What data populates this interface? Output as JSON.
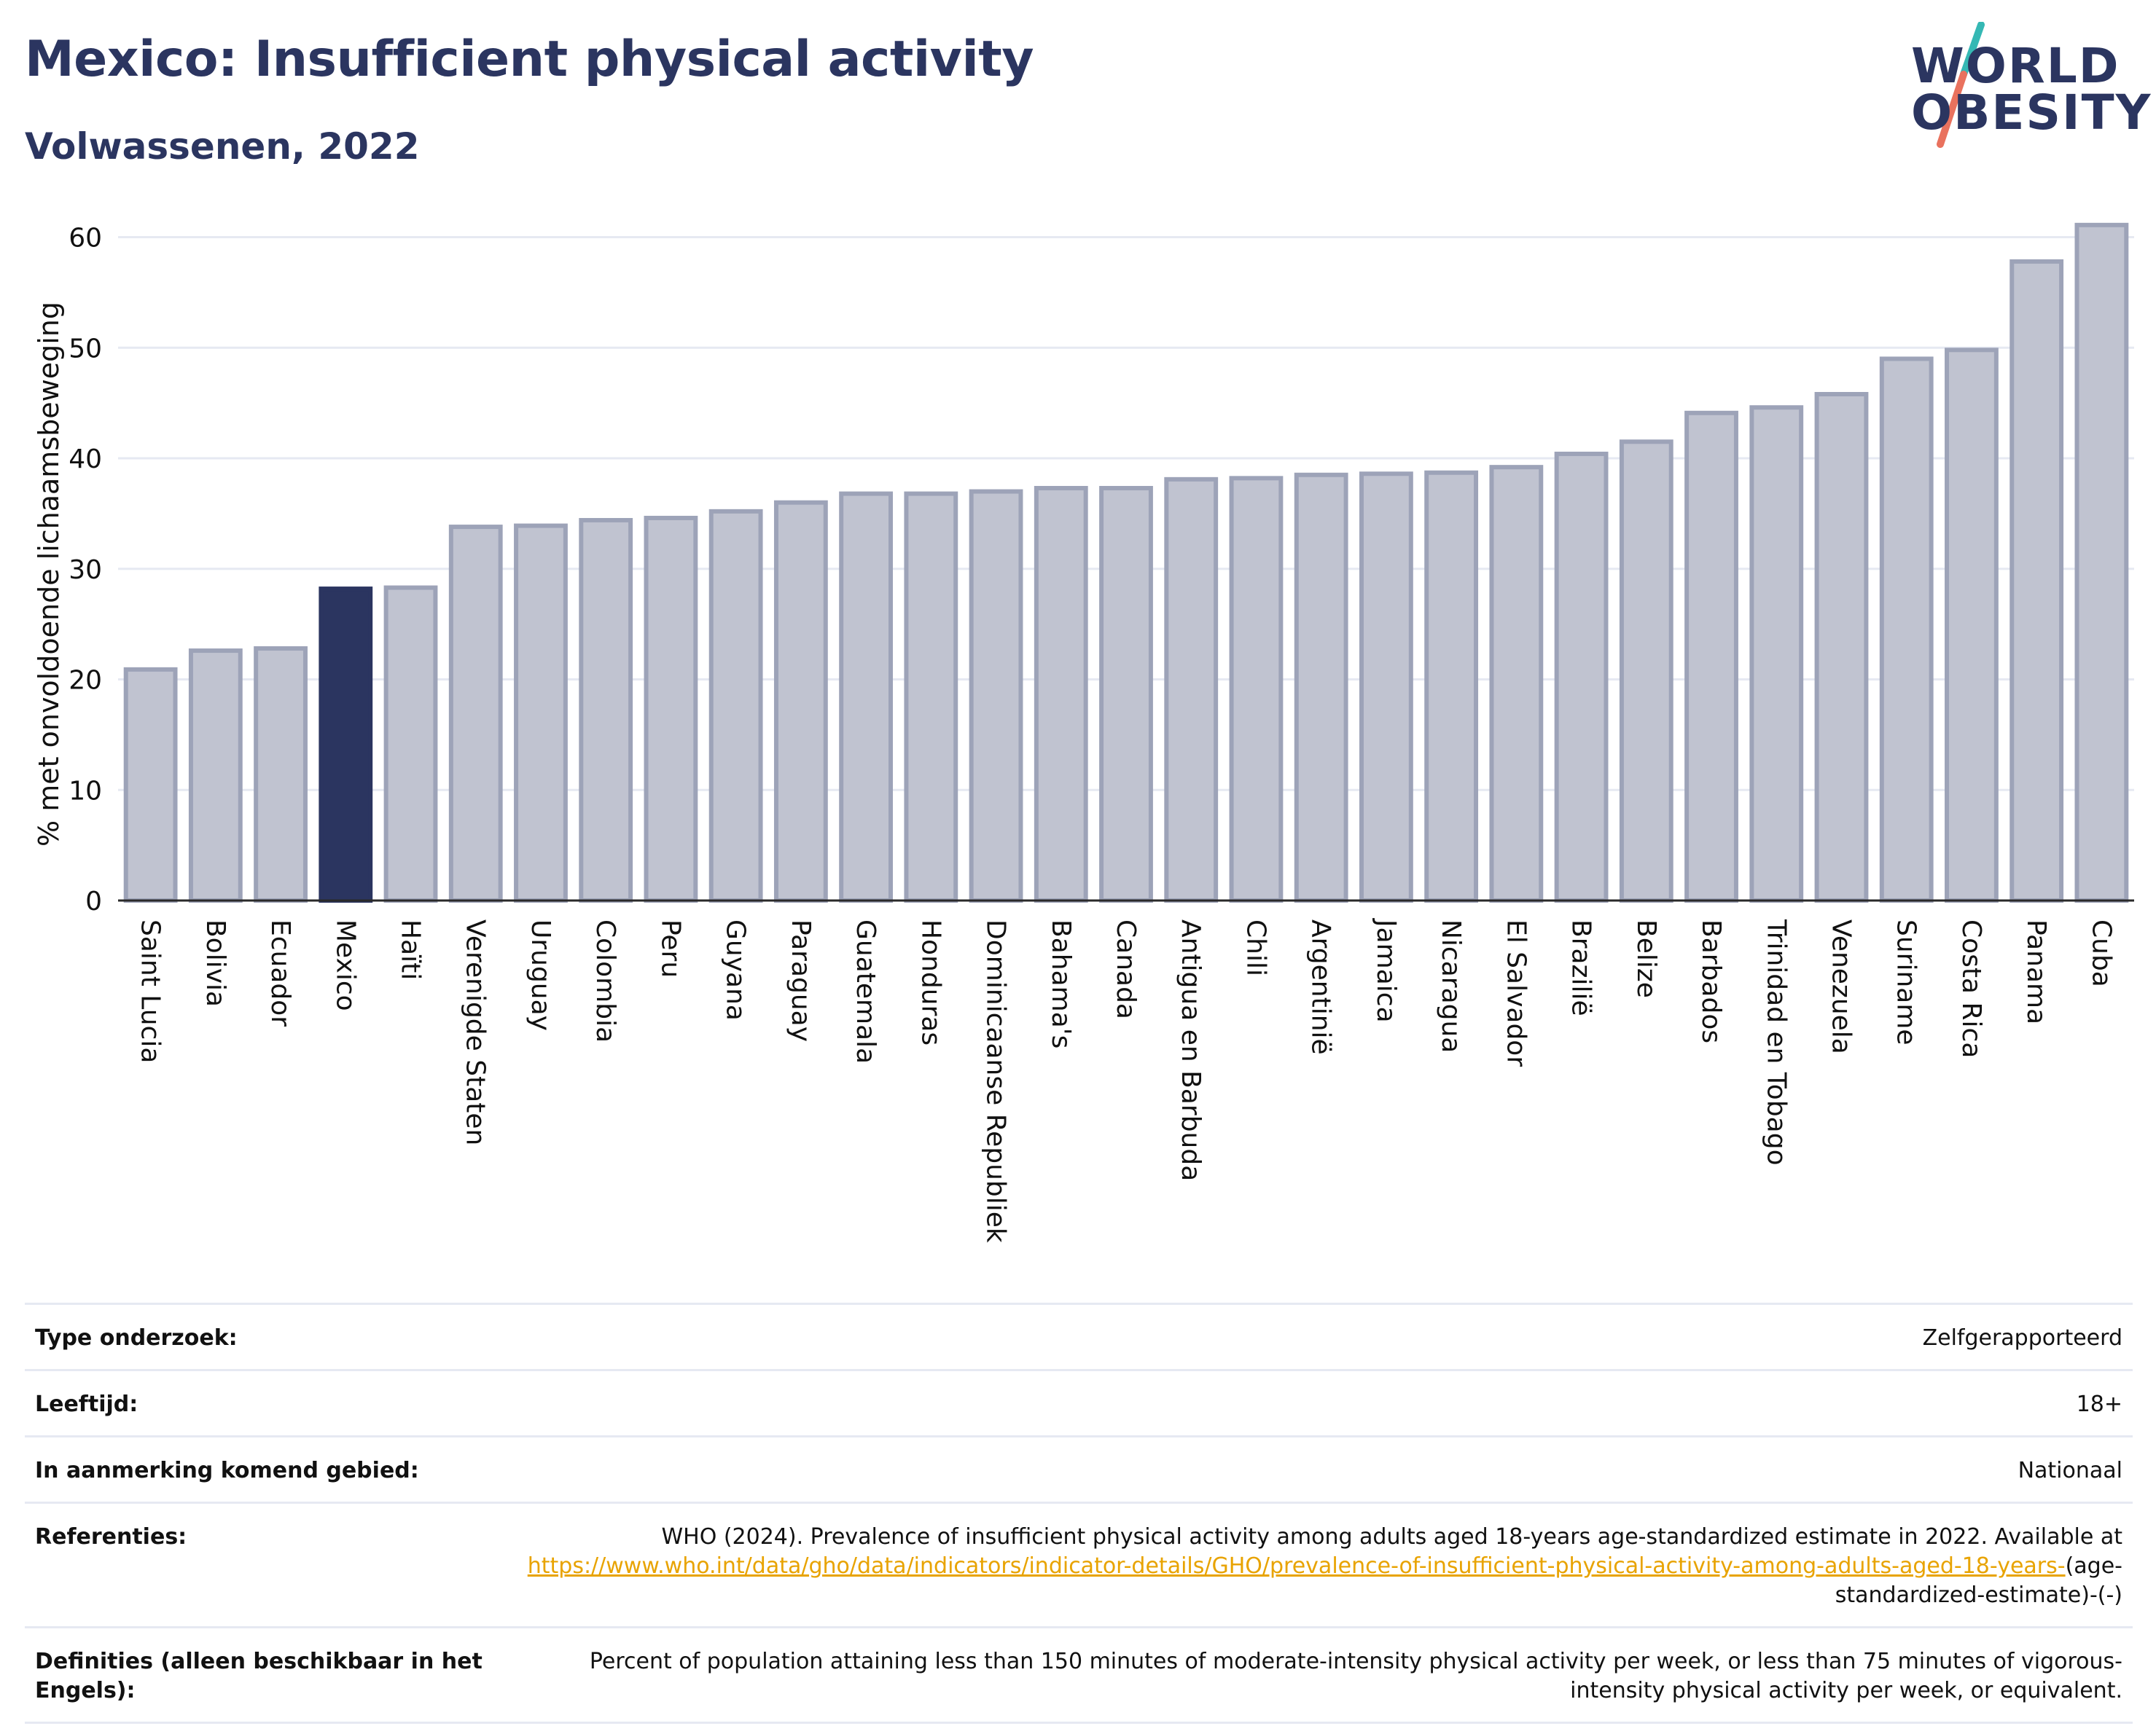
{
  "header": {
    "title": "Mexico: Insufficient physical activity",
    "subtitle": "Volwassenen, 2022"
  },
  "logo": {
    "line1": "WORLD",
    "line2": "OBESITY"
  },
  "colors": {
    "highlight": "#2b3560",
    "bar_fill": "#c0c3d0",
    "bar_stroke": "#9da3b8",
    "grid": "#e6e9f2",
    "logo_teal": "#35b8b4",
    "logo_coral": "#e9725e",
    "link": "#e8a300"
  },
  "chart_data": {
    "type": "bar",
    "title": "Mexico: Insufficient physical activity",
    "subtitle": "Volwassenen, 2022",
    "xlabel": "",
    "ylabel": "% met onvoldoende lichaamsbeweging",
    "ylim": [
      0,
      63
    ],
    "yticks": [
      0,
      10,
      20,
      30,
      40,
      50,
      60
    ],
    "grid": true,
    "highlight": "Mexico",
    "categories": [
      "Saint Lucia",
      "Bolivia",
      "Ecuador",
      "Mexico",
      "Haïti",
      "Verenigde Staten",
      "Uruguay",
      "Colombia",
      "Peru",
      "Guyana",
      "Paraguay",
      "Guatemala",
      "Honduras",
      "Dominicaanse Republiek",
      "Bahama's",
      "Canada",
      "Antigua en Barbuda",
      "Chili",
      "Argentinië",
      "Jamaica",
      "Nicaragua",
      "El Salvador",
      "Brazilië",
      "Belize",
      "Barbados",
      "Trinidad en Tobago",
      "Venezuela",
      "Suriname",
      "Costa Rica",
      "Panama",
      "Cuba"
    ],
    "values": [
      20.9,
      22.6,
      22.8,
      28.2,
      28.3,
      33.8,
      33.9,
      34.4,
      34.6,
      35.2,
      36.0,
      36.8,
      36.8,
      37.0,
      37.3,
      37.3,
      38.1,
      38.2,
      38.5,
      38.6,
      38.7,
      39.2,
      40.4,
      41.5,
      44.1,
      44.6,
      45.8,
      49.0,
      49.8,
      57.8,
      61.1
    ]
  },
  "info_table": [
    {
      "key": "Type onderzoek:",
      "value": "Zelfgerapporteerd"
    },
    {
      "key": "Leeftijd:",
      "value": "18+"
    },
    {
      "key": "In aanmerking komend gebied:",
      "value": "Nationaal"
    },
    {
      "key": "Referenties:",
      "value": "WHO (2024). Prevalence of insufficient physical activity among adults aged 18-years age-standardized estimate in 2022. Available at",
      "link": "https://www.who.int/data/gho/data/indicators/indicator-details/GHO/prevalence-of-insufficient-physical-activity-among-adults-aged-18-years-",
      "suffix": "(age-standardized-estimate)-(-)"
    },
    {
      "key": "Definities (alleen beschikbaar in het Engels):",
      "value": "Percent of population attaining less than 150 minutes of moderate-intensity physical activity per week, or less than 75 minutes of vigorous-intensity physical activity per week, or equivalent."
    }
  ]
}
